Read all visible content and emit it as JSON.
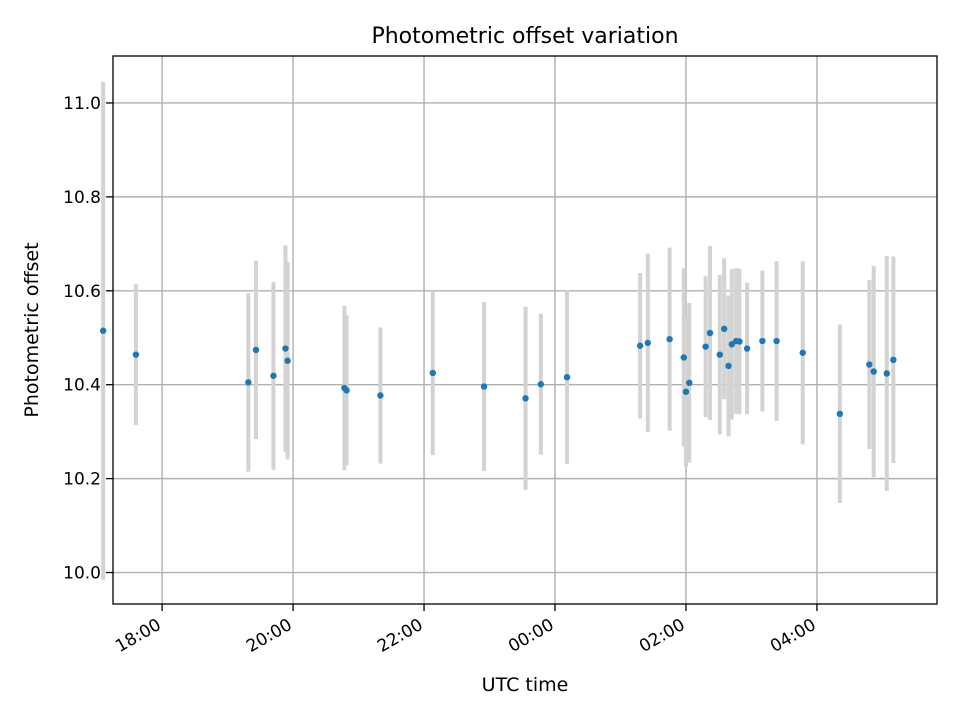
{
  "chart_data": {
    "type": "scatter",
    "title": "Photometric offset variation",
    "xlabel": "UTC time",
    "ylabel": "Photometric offset",
    "x_axis_type": "time",
    "xlim": [
      "17:15",
      "05:50"
    ],
    "ylim": [
      9.933,
      11.1
    ],
    "x_ticks": [
      {
        "time": "18:00",
        "label": "18:00"
      },
      {
        "time": "20:00",
        "label": "20:00"
      },
      {
        "time": "22:00",
        "label": "22:00"
      },
      {
        "time": "00:00",
        "label": "00:00"
      },
      {
        "time": "02:00",
        "label": "02:00"
      },
      {
        "time": "04:00",
        "label": "04:00"
      }
    ],
    "y_ticks": [
      {
        "value": 10.0,
        "label": "10.0"
      },
      {
        "value": 10.2,
        "label": "10.2"
      },
      {
        "value": 10.4,
        "label": "10.4"
      },
      {
        "value": 10.6,
        "label": "10.6"
      },
      {
        "value": 10.8,
        "label": "10.8"
      },
      {
        "value": 11.0,
        "label": "11.0"
      }
    ],
    "grid": true,
    "colors": {
      "point": "#1f77b4",
      "errorbar": "#d3d3d3",
      "grid": "#b0b0b0"
    },
    "points": [
      {
        "time": "17:06",
        "y": 10.515,
        "err": 0.53
      },
      {
        "time": "17:36",
        "y": 10.464,
        "err": 0.15
      },
      {
        "time": "19:19",
        "y": 10.405,
        "err": 0.19
      },
      {
        "time": "19:26",
        "y": 10.474,
        "err": 0.19
      },
      {
        "time": "19:42",
        "y": 10.419,
        "err": 0.2
      },
      {
        "time": "19:53",
        "y": 10.477,
        "err": 0.22
      },
      {
        "time": "19:55",
        "y": 10.451,
        "err": 0.21
      },
      {
        "time": "20:47",
        "y": 10.393,
        "err": 0.175
      },
      {
        "time": "20:49",
        "y": 10.388,
        "err": 0.16
      },
      {
        "time": "21:20",
        "y": 10.377,
        "err": 0.145
      },
      {
        "time": "22:08",
        "y": 10.425,
        "err": 0.175
      },
      {
        "time": "22:55",
        "y": 10.396,
        "err": 0.18
      },
      {
        "time": "23:33",
        "y": 10.371,
        "err": 0.195
      },
      {
        "time": "23:47",
        "y": 10.401,
        "err": 0.15
      },
      {
        "time": "00:11",
        "y": 10.416,
        "err": 0.185
      },
      {
        "time": "01:18",
        "y": 10.483,
        "err": 0.155
      },
      {
        "time": "01:25",
        "y": 10.489,
        "err": 0.19
      },
      {
        "time": "01:45",
        "y": 10.497,
        "err": 0.195
      },
      {
        "time": "01:58",
        "y": 10.458,
        "err": 0.19
      },
      {
        "time": "02:00",
        "y": 10.385,
        "err": 0.16
      },
      {
        "time": "02:03",
        "y": 10.404,
        "err": 0.17
      },
      {
        "time": "02:18",
        "y": 10.481,
        "err": 0.15
      },
      {
        "time": "02:22",
        "y": 10.51,
        "err": 0.185
      },
      {
        "time": "02:31",
        "y": 10.464,
        "err": 0.17
      },
      {
        "time": "02:35",
        "y": 10.519,
        "err": 0.15
      },
      {
        "time": "02:39",
        "y": 10.44,
        "err": 0.15
      },
      {
        "time": "02:42",
        "y": 10.486,
        "err": 0.16
      },
      {
        "time": "02:46",
        "y": 10.493,
        "err": 0.155
      },
      {
        "time": "02:49",
        "y": 10.492,
        "err": 0.155
      },
      {
        "time": "02:56",
        "y": 10.477,
        "err": 0.14
      },
      {
        "time": "03:10",
        "y": 10.493,
        "err": 0.15
      },
      {
        "time": "03:23",
        "y": 10.493,
        "err": 0.17
      },
      {
        "time": "03:47",
        "y": 10.468,
        "err": 0.195
      },
      {
        "time": "04:21",
        "y": 10.338,
        "err": 0.19
      },
      {
        "time": "04:48",
        "y": 10.443,
        "err": 0.18
      },
      {
        "time": "04:52",
        "y": 10.428,
        "err": 0.225
      },
      {
        "time": "05:04",
        "y": 10.424,
        "err": 0.25
      },
      {
        "time": "05:10",
        "y": 10.453,
        "err": 0.22
      }
    ]
  }
}
